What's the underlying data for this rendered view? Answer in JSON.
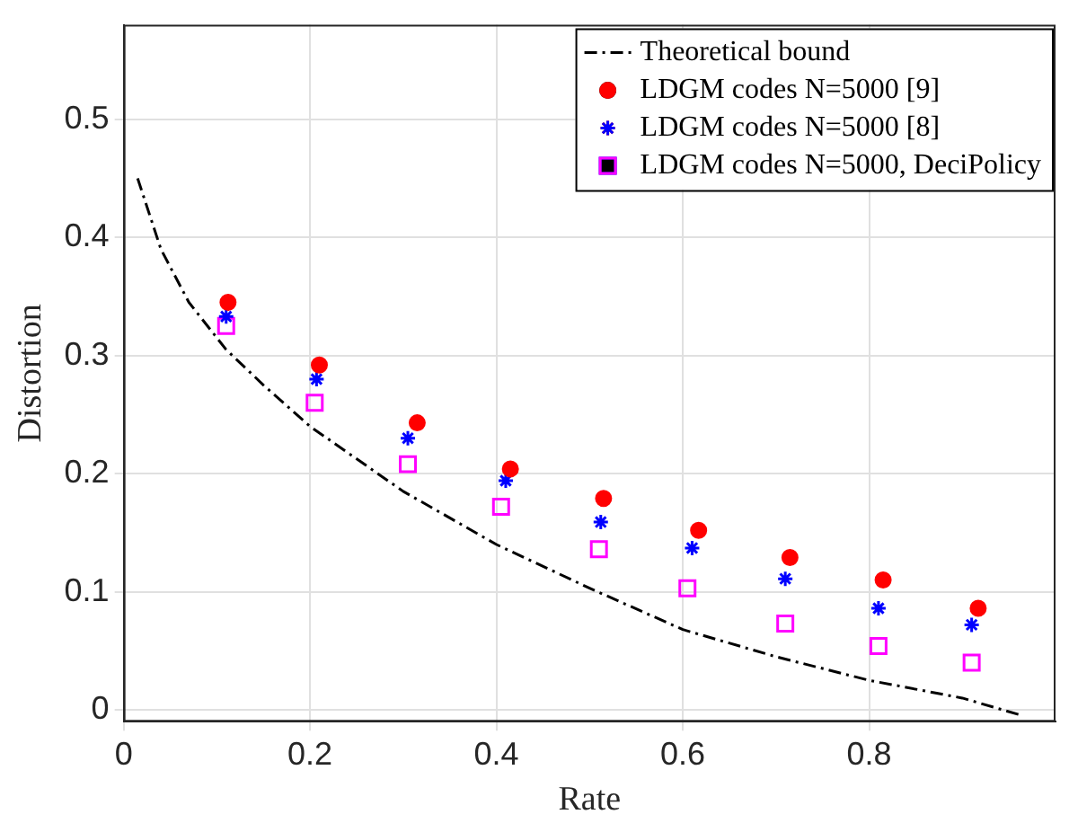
{
  "chart_data": {
    "type": "scatter",
    "xlabel": "Rate",
    "ylabel": "Distortion",
    "xlim": [
      0,
      1
    ],
    "ylim": [
      -0.01,
      0.58
    ],
    "xticks": [
      0,
      0.2,
      0.4,
      0.6,
      0.8
    ],
    "yticks": [
      0,
      0.1,
      0.2,
      0.3,
      0.4,
      0.5
    ],
    "grid": true,
    "legend": "top right",
    "series": [
      {
        "name": "Theoretical bound",
        "type": "line",
        "color": "#000000",
        "line_style": "dashed",
        "marker": "none",
        "x": [
          0.015,
          0.04,
          0.07,
          0.11,
          0.15,
          0.2,
          0.3,
          0.4,
          0.5,
          0.6,
          0.7,
          0.8,
          0.9,
          0.965
        ],
        "values": [
          0.45,
          0.39,
          0.345,
          0.305,
          0.275,
          0.24,
          0.185,
          0.14,
          0.103,
          0.068,
          0.045,
          0.025,
          0.01,
          -0.005
        ]
      },
      {
        "name": "LDGM codes N=5000 [9]",
        "type": "scatter",
        "color": "#ff0000",
        "marker": "circle",
        "x": [
          0.112,
          0.21,
          0.315,
          0.415,
          0.515,
          0.617,
          0.715,
          0.815,
          0.917
        ],
        "values": [
          0.345,
          0.292,
          0.243,
          0.204,
          0.179,
          0.152,
          0.129,
          0.11,
          0.086
        ]
      },
      {
        "name": "LDGM codes N=5000 [8]",
        "type": "scatter",
        "color": "#0000ff",
        "marker": "cross",
        "x": [
          0.11,
          0.207,
          0.305,
          0.41,
          0.512,
          0.61,
          0.71,
          0.81,
          0.91
        ],
        "values": [
          0.333,
          0.28,
          0.23,
          0.194,
          0.159,
          0.137,
          0.111,
          0.086,
          0.072
        ]
      },
      {
        "name": "LDGM codes N=5000, DeciPolicy",
        "type": "scatter",
        "color": "#ff00ff",
        "marker": "square",
        "x": [
          0.11,
          0.205,
          0.305,
          0.405,
          0.51,
          0.605,
          0.71,
          0.81,
          0.91
        ],
        "values": [
          0.325,
          0.26,
          0.208,
          0.172,
          0.136,
          0.103,
          0.073,
          0.054,
          0.04
        ]
      }
    ]
  }
}
